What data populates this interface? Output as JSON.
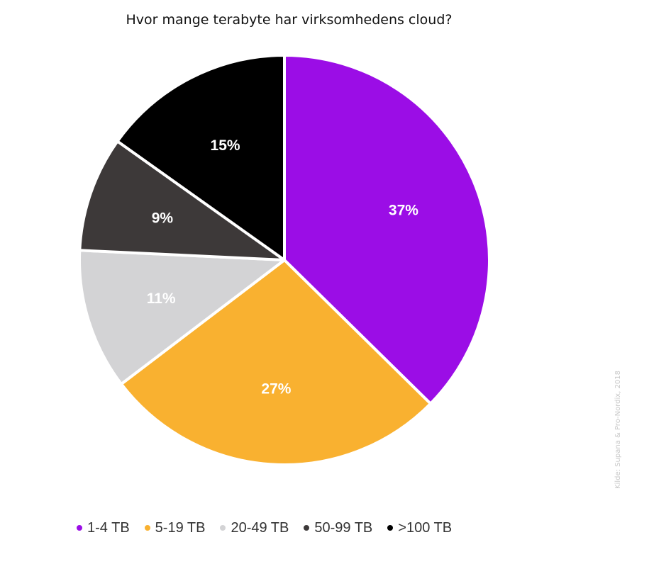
{
  "chart_data": {
    "type": "pie",
    "title": "Hvor mange terabyte har virksomhedens cloud?",
    "slices": [
      {
        "label": "1-4 TB",
        "value": 37,
        "value_label": "37%",
        "color": "#9b0de6"
      },
      {
        "label": "5-19 TB",
        "value": 27,
        "value_label": "27%",
        "color": "#f9b130"
      },
      {
        "label": "20-49 TB",
        "value": 11,
        "value_label": "11%",
        "color": "#d3d3d5"
      },
      {
        "label": "50-99 TB",
        "value": 9,
        "value_label": "9%",
        "color": "#3d3939"
      },
      {
        "label": ">100 TB",
        "value": 15,
        "value_label": "15%",
        "color": "#000000"
      }
    ],
    "legend_position": "bottom",
    "source": "Kilde: Supana & Pro-Nordix, 2018"
  }
}
